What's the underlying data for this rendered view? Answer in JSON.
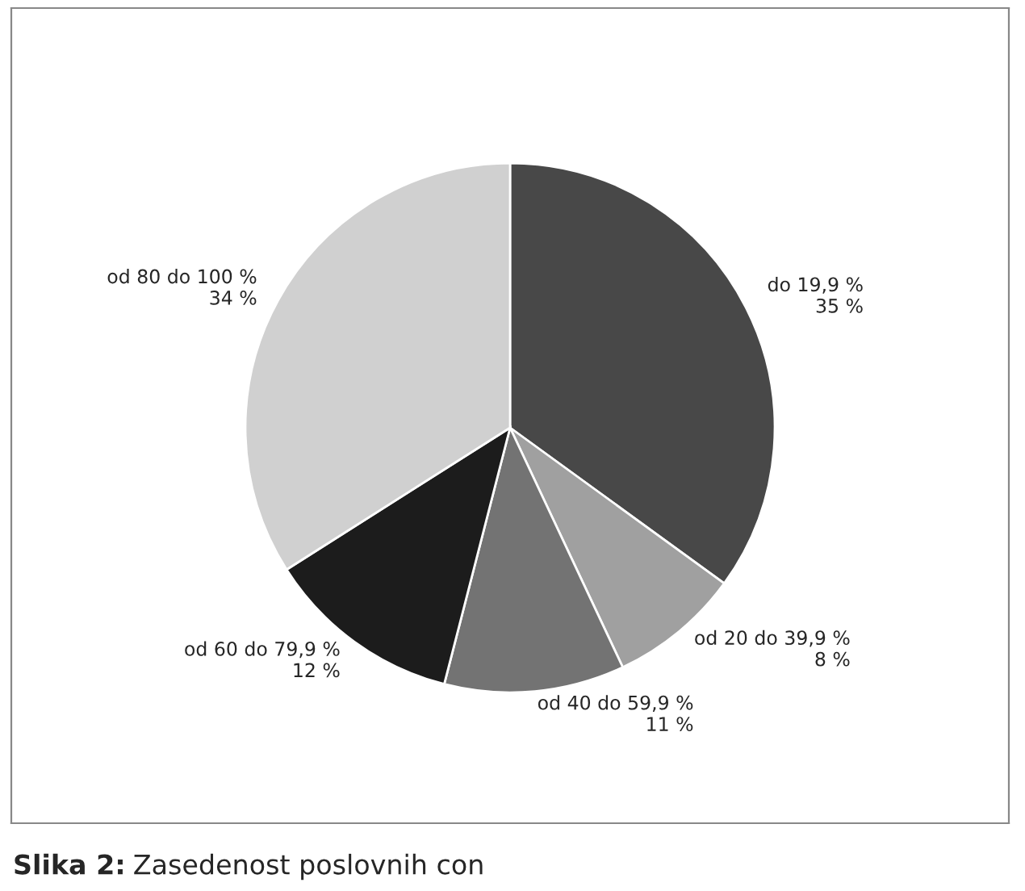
{
  "chart_data": {
    "type": "pie",
    "categories": [
      "do 19,9 %",
      "od 20 do 39,9 %",
      "od 40 do 59,9 %",
      "od 60 do 79,9 %",
      "od 80 do 100 %"
    ],
    "values": [
      35,
      8,
      11,
      12,
      34
    ],
    "value_labels": [
      "35 %",
      "8 %",
      "11 %",
      "12 %",
      "34 %"
    ],
    "colors": [
      "#484848",
      "#a0a0a0",
      "#737373",
      "#1c1c1c",
      "#d0d0d0"
    ],
    "annotations": [
      "Slika 2:",
      "Zasedenost poslovnih con"
    ]
  }
}
